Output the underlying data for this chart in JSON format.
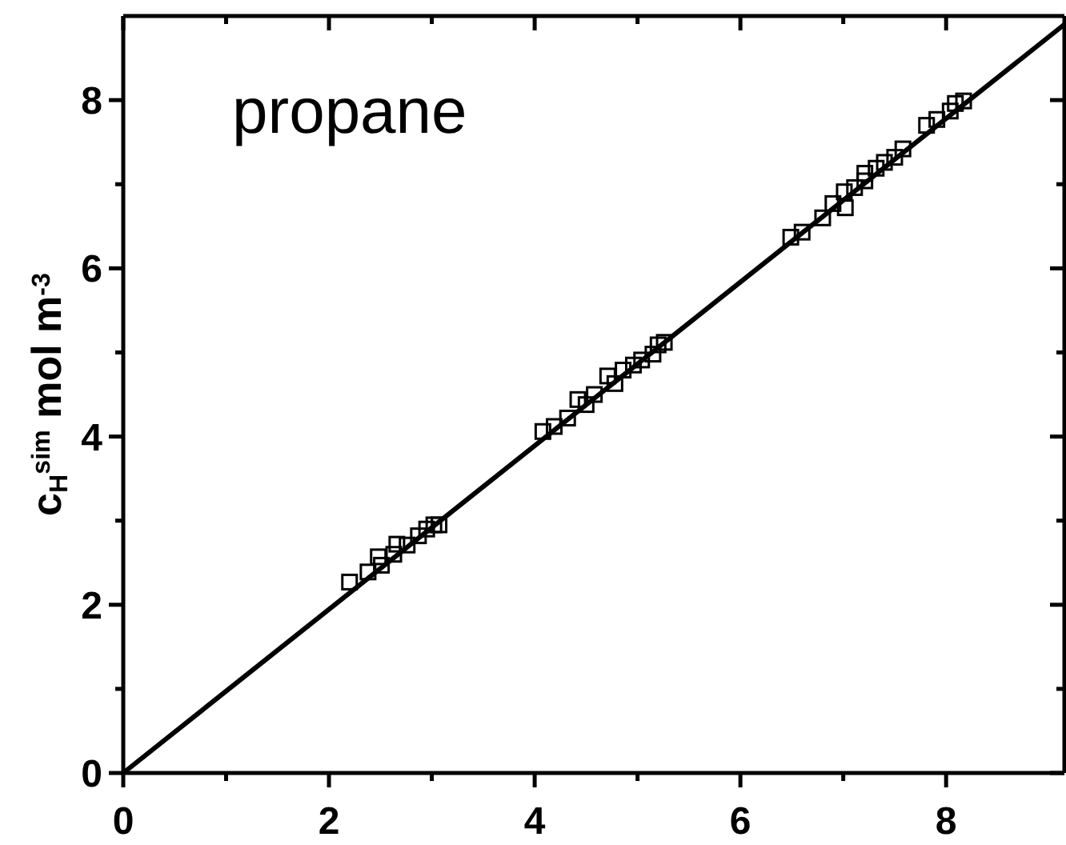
{
  "chart_data": {
    "type": "scatter",
    "ylabel": "c$_{H}$$^{sim}$ mol m$^{-3}$",
    "annotations": [
      "propane"
    ],
    "xlim": [
      0,
      9.15
    ],
    "ylim": [
      0,
      9
    ],
    "xticks": [
      0,
      {
        "value": 1,
        "label": null
      },
      2,
      {
        "value": 3,
        "label": null
      },
      4,
      {
        "value": 5,
        "label": null
      },
      6,
      {
        "value": 7,
        "label": null
      },
      8
    ],
    "yticks": [
      0,
      {
        "value": 1,
        "label": null
      },
      2,
      {
        "value": 3,
        "label": null
      },
      4,
      {
        "value": 5,
        "label": null
      },
      6,
      {
        "value": 7,
        "label": null
      },
      8
    ],
    "series": [
      {
        "marker": "square",
        "color": "#000000",
        "x": [
          2.2,
          2.38,
          2.48,
          2.51,
          2.63,
          2.66,
          2.76,
          2.87,
          2.95,
          3.02,
          3.07,
          4.08,
          4.19,
          4.32,
          4.42,
          4.5,
          4.58,
          4.71,
          4.78,
          4.86,
          4.96,
          5.04,
          5.15,
          5.2,
          5.26,
          6.49,
          6.6,
          6.8,
          6.9,
          7.02,
          7.01,
          7.11,
          7.21,
          7.21,
          7.32,
          7.4,
          7.5,
          7.58,
          7.81,
          7.91,
          8.04,
          8.09,
          8.17
        ],
        "values": [
          2.27,
          2.39,
          2.57,
          2.47,
          2.6,
          2.72,
          2.71,
          2.82,
          2.9,
          2.95,
          2.95,
          4.06,
          4.12,
          4.22,
          4.44,
          4.38,
          4.5,
          4.72,
          4.63,
          4.79,
          4.85,
          4.91,
          4.98,
          5.09,
          5.12,
          6.37,
          6.43,
          6.6,
          6.77,
          6.72,
          6.91,
          6.96,
          7.04,
          7.13,
          7.19,
          7.26,
          7.32,
          7.42,
          7.7,
          7.77,
          7.87,
          7.96,
          7.99
        ]
      },
      {
        "type": "line",
        "color": "#000000",
        "x": [
          0,
          9.15
        ],
        "values": [
          0,
          8.9
        ]
      }
    ]
  }
}
